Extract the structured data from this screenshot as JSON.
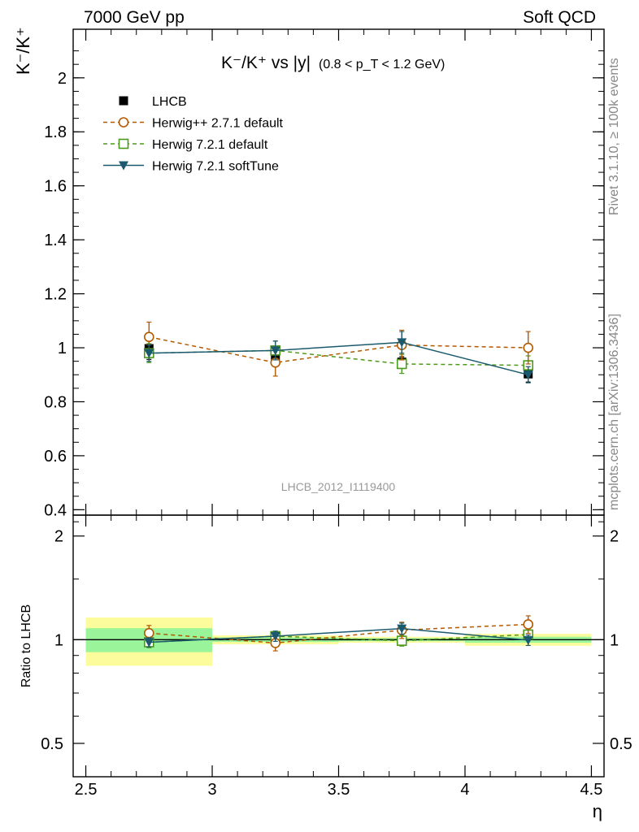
{
  "header": {
    "left": "7000 GeV pp",
    "right": "Soft QCD"
  },
  "side": {
    "rivet": "Rivet 3.1.10, ≥ 100k events",
    "site": "mcplots.cern.ch [arXiv:1306.3436]"
  },
  "colors": {
    "lhcb": "#000000",
    "herwigpp": "#b35900",
    "herwig721": "#4c9a1a",
    "softtune": "#1b5a6e",
    "band_stat": "#9af59a",
    "band_total": "#fcfc9c",
    "tag": "#999999"
  },
  "chart_data": {
    "type": "scatter",
    "title_main": "K⁻/K⁺ vs |y|",
    "title_range": "(0.8 < p_T < 1.2 GeV)",
    "ylabel": "K⁻/K⁺",
    "ratio_ylabel": "Ratio to LHCB",
    "xlabel": "η",
    "tag": "LHCB_2012_I1119400",
    "xlim": [
      2.45,
      4.55
    ],
    "ylim": [
      0.38,
      2.18
    ],
    "ratio_ylim": [
      0.4,
      2.3
    ],
    "ratio_scale": "log",
    "x_ticks": [
      "2.5",
      "3",
      "3.5",
      "4",
      "4.5"
    ],
    "y_ticks": [
      "0.4",
      "0.6",
      "0.8",
      "1",
      "1.2",
      "1.4",
      "1.6",
      "1.8",
      "2"
    ],
    "ratio_ticks": [
      "0.5",
      "1",
      "2"
    ],
    "legend_position": "top-left",
    "x_bins": [
      [
        2.5,
        3.0
      ],
      [
        3.0,
        3.5
      ],
      [
        3.5,
        4.0
      ],
      [
        4.0,
        4.5
      ]
    ],
    "x": [
      2.75,
      3.25,
      3.75,
      4.25
    ],
    "series": [
      {
        "name": "LHCB",
        "marker": "filled-square",
        "values": [
          0.997,
          0.967,
          0.947,
          0.903
        ],
        "errors": [
          0.04,
          0.03,
          0.02,
          0.03
        ],
        "ratio_band_stat": [
          0.08,
          0.015,
          0.01,
          0.02
        ],
        "ratio_band_total": [
          0.16,
          0.03,
          0.02,
          0.04
        ]
      },
      {
        "name": "Herwig++ 2.7.1 default",
        "marker": "open-circle",
        "line": "dashed",
        "values": [
          1.04,
          0.945,
          1.01,
          1.0
        ],
        "errors": [
          0.055,
          0.05,
          0.055,
          0.06
        ],
        "ratio": [
          1.045,
          0.978,
          1.066,
          1.108
        ],
        "ratio_errors": [
          0.055,
          0.05,
          0.058,
          0.065
        ]
      },
      {
        "name": "Herwig 7.2.1 default",
        "marker": "open-square",
        "line": "dashed",
        "values": [
          0.98,
          0.99,
          0.94,
          0.935
        ],
        "errors": [
          0.035,
          0.035,
          0.035,
          0.035
        ],
        "ratio": [
          0.983,
          1.024,
          0.993,
          1.035
        ],
        "ratio_errors": [
          0.035,
          0.035,
          0.035,
          0.04
        ]
      },
      {
        "name": "Herwig 7.2.1 softTune",
        "marker": "filled-triangle-down",
        "line": "solid",
        "values": [
          0.98,
          0.99,
          1.02,
          0.9
        ],
        "errors": [
          0.03,
          0.035,
          0.04,
          0.03
        ],
        "ratio": [
          0.983,
          1.024,
          1.077,
          0.997
        ],
        "ratio_errors": [
          0.03,
          0.035,
          0.04,
          0.035
        ]
      }
    ]
  }
}
